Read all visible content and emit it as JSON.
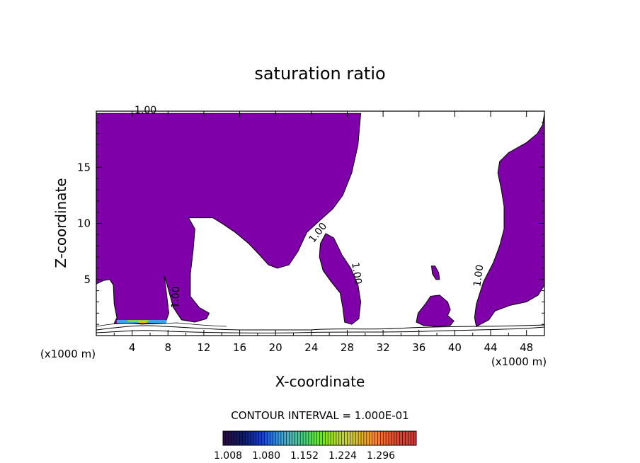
{
  "chart_data": {
    "type": "contour",
    "title": "saturation ratio",
    "xlabel": "X-coordinate",
    "ylabel": "Z-coordinate",
    "x_unit_label": "(x1000 m)",
    "z_unit_label": "(x1000 m)",
    "xlim": [
      0,
      50
    ],
    "ylim": [
      0,
      20
    ],
    "x_ticks": [
      4,
      8,
      12,
      16,
      20,
      24,
      28,
      32,
      36,
      40,
      44,
      48
    ],
    "y_ticks": [
      5,
      10,
      15
    ],
    "contour_label": "1.00",
    "contour_interval_text": "CONTOUR INTERVAL = 1.000E-01",
    "fill_color": "#7f00a8",
    "regions": [
      {
        "name": "left-upper",
        "points": [
          [
            0,
            19.8
          ],
          [
            29.5,
            19.8
          ],
          [
            29.2,
            17
          ],
          [
            28.5,
            14.5
          ],
          [
            27.5,
            12.5
          ],
          [
            26.4,
            11.3
          ],
          [
            25,
            10.3
          ],
          [
            23.5,
            9.2
          ],
          [
            22.5,
            7.5
          ],
          [
            21.5,
            6.3
          ],
          [
            20.2,
            6.0
          ],
          [
            19.2,
            6.3
          ],
          [
            18.2,
            7.2
          ],
          [
            17,
            8.2
          ],
          [
            15.5,
            9.2
          ],
          [
            14.2,
            9.9
          ],
          [
            13,
            10.5
          ],
          [
            10.3,
            10.5
          ],
          [
            11,
            9.5
          ],
          [
            10.8,
            7.5
          ],
          [
            10.5,
            5.5
          ],
          [
            10.5,
            3.5
          ],
          [
            11.5,
            2.5
          ],
          [
            12.6,
            2.0
          ],
          [
            12.3,
            1.5
          ],
          [
            11,
            1.2
          ],
          [
            9.5,
            1.4
          ],
          [
            8.6,
            2.5
          ],
          [
            7.8,
            4.8
          ],
          [
            7.6,
            5.3
          ],
          [
            7.8,
            4.0
          ],
          [
            8.1,
            2.0
          ],
          [
            7.7,
            1.1
          ],
          [
            6.5,
            1.1
          ],
          [
            5.5,
            1.1
          ],
          [
            4.5,
            1.1
          ],
          [
            3.3,
            1.1
          ],
          [
            2.0,
            1.1
          ],
          [
            2.3,
            1.6
          ],
          [
            2.0,
            2.8
          ],
          [
            1.9,
            4.5
          ],
          [
            1.5,
            5.0
          ],
          [
            0.8,
            4.9
          ],
          [
            0,
            4.6
          ]
        ]
      },
      {
        "name": "center-tongue",
        "points": [
          [
            25.6,
            9.1
          ],
          [
            26.5,
            8.7
          ],
          [
            27.4,
            7.2
          ],
          [
            28.4,
            6.0
          ],
          [
            29.2,
            4.5
          ],
          [
            29.5,
            3.0
          ],
          [
            29.3,
            1.5
          ],
          [
            28.5,
            1.0
          ],
          [
            27.7,
            1.2
          ],
          [
            27.5,
            2.5
          ],
          [
            27.2,
            3.8
          ],
          [
            26.2,
            4.8
          ],
          [
            25.3,
            5.8
          ],
          [
            24.9,
            7.0
          ],
          [
            25.0,
            8.2
          ]
        ]
      },
      {
        "name": "right-column",
        "points": [
          [
            50,
            19.8
          ],
          [
            50,
            4.5
          ],
          [
            49.3,
            3.6
          ],
          [
            48.0,
            3.0
          ],
          [
            46.2,
            2.7
          ],
          [
            44.5,
            2.2
          ],
          [
            43.8,
            1.4
          ],
          [
            42.4,
            0.8
          ],
          [
            42.2,
            1.6
          ],
          [
            42.4,
            2.8
          ],
          [
            43.2,
            4.8
          ],
          [
            44.3,
            6.5
          ],
          [
            45.0,
            8.0
          ],
          [
            45.5,
            9.5
          ],
          [
            45.5,
            11.5
          ],
          [
            45.2,
            13.0
          ],
          [
            44.8,
            14.5
          ],
          [
            45.0,
            15.5
          ],
          [
            46.0,
            16.3
          ],
          [
            48.0,
            17.2
          ],
          [
            49.2,
            18.0
          ],
          [
            49.8,
            18.8
          ]
        ]
      },
      {
        "name": "right-blob",
        "points": [
          [
            35.7,
            1.2
          ],
          [
            35.9,
            2.0
          ],
          [
            36.7,
            2.8
          ],
          [
            37.3,
            3.5
          ],
          [
            38.3,
            3.6
          ],
          [
            39.2,
            3.0
          ],
          [
            39.5,
            2.3
          ],
          [
            39.2,
            1.8
          ],
          [
            39.9,
            1.3
          ],
          [
            39.5,
            0.9
          ],
          [
            38.0,
            0.8
          ],
          [
            36.5,
            0.9
          ]
        ]
      },
      {
        "name": "small-blob",
        "points": [
          [
            37.4,
            6.2
          ],
          [
            37.8,
            6.2
          ],
          [
            38.2,
            5.6
          ],
          [
            38.3,
            5.0
          ],
          [
            37.9,
            5.0
          ],
          [
            37.5,
            5.5
          ]
        ]
      }
    ],
    "label_positions": [
      {
        "x": 5.5,
        "y": 19.8,
        "angle": 0
      },
      {
        "x": 25.0,
        "y": 9.0,
        "angle": -52
      },
      {
        "x": 28.7,
        "y": 5.5,
        "angle": 82
      },
      {
        "x": 9.2,
        "y": 3.4,
        "angle": -88
      },
      {
        "x": 43.0,
        "y": 5.3,
        "angle": -82
      }
    ],
    "colorbar": {
      "colors": [
        "#2a0a4a",
        "#0a1a7a",
        "#1a40c8",
        "#3aa8e0",
        "#40d090",
        "#70e030",
        "#b8e020",
        "#e0c020",
        "#f08040",
        "#f04020",
        "#e03030"
      ],
      "tick_labels": [
        "1.008",
        "1.080",
        "1.152",
        "1.224",
        "1.296"
      ]
    }
  }
}
